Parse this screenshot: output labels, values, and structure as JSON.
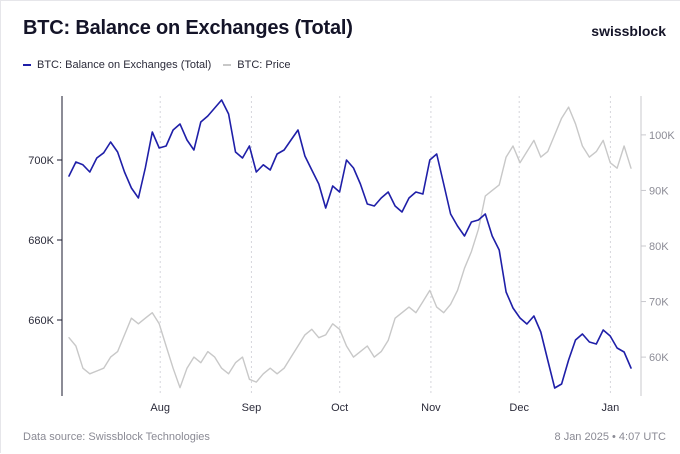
{
  "header": {
    "title": "BTC: Balance on Exchanges (Total)",
    "brand": "swissblock"
  },
  "legend": {
    "balance_label": "BTC: Balance on Exchanges (Total)",
    "price_label": "BTC: Price"
  },
  "footer": {
    "source": "Data source: Swissblock Technologies",
    "timestamp": "8 Jan 2025 • 4:07 UTC"
  },
  "colors": {
    "balance": "#1f1fa8",
    "price": "#c8c8c8",
    "grid": "#d5d5db"
  },
  "chart_data": {
    "type": "line",
    "title": "BTC: Balance on Exchanges (Total)",
    "x_range": [
      "2024-07-01",
      "2025-01-08"
    ],
    "x_ticks": [
      {
        "label": "Aug",
        "date": "2024-08-01"
      },
      {
        "label": "Sep",
        "date": "2024-09-01"
      },
      {
        "label": "Oct",
        "date": "2024-10-01"
      },
      {
        "label": "Nov",
        "date": "2024-11-01"
      },
      {
        "label": "Dec",
        "date": "2024-12-01"
      },
      {
        "label": "Jan",
        "date": "2025-01-01"
      }
    ],
    "left_axis": {
      "range": [
        641000,
        716000
      ],
      "ticks": [
        {
          "label": "660K",
          "value": 660000
        },
        {
          "label": "680K",
          "value": 680000
        },
        {
          "label": "700K",
          "value": 700000
        }
      ]
    },
    "right_axis": {
      "range": [
        53000,
        107000
      ],
      "ticks": [
        {
          "label": "60K",
          "value": 60000
        },
        {
          "label": "70K",
          "value": 70000
        },
        {
          "label": "80K",
          "value": 80000
        },
        {
          "label": "90K",
          "value": 90000
        },
        {
          "label": "100K",
          "value": 100000
        }
      ]
    },
    "series": [
      {
        "name": "BTC: Balance on Exchanges (Total)",
        "axis": "left",
        "values": [
          696000,
          699500,
          698800,
          697000,
          700500,
          701800,
          704500,
          702000,
          697000,
          693000,
          690500,
          698000,
          707000,
          703000,
          703500,
          707500,
          709000,
          705000,
          702500,
          709500,
          711000,
          713000,
          715000,
          711500,
          702000,
          700500,
          703500,
          697000,
          698800,
          697500,
          701500,
          702500,
          705000,
          707500,
          701000,
          697500,
          694000,
          688000,
          693500,
          692000,
          700000,
          698000,
          694000,
          689000,
          688500,
          690500,
          692000,
          688500,
          687000,
          690500,
          692000,
          691500,
          700000,
          701500,
          694000,
          686500,
          683500,
          681000,
          684500,
          685000,
          686500,
          681000,
          677500,
          667000,
          663000,
          660500,
          659000,
          661000,
          657000,
          650000,
          643000,
          644000,
          650000,
          655000,
          656500,
          654500,
          654000,
          657500,
          656000,
          653000,
          652000,
          648000
        ]
      },
      {
        "name": "BTC: Price",
        "axis": "right",
        "values": [
          63500,
          62000,
          58000,
          57000,
          57500,
          58000,
          60000,
          61000,
          64000,
          67000,
          66000,
          67000,
          68000,
          66000,
          62000,
          58000,
          54500,
          58000,
          60000,
          59000,
          61000,
          60000,
          58000,
          57000,
          59000,
          60000,
          56000,
          55500,
          57000,
          58000,
          57000,
          58000,
          60000,
          62000,
          64000,
          65000,
          63500,
          64000,
          66000,
          65000,
          62000,
          60000,
          61000,
          62000,
          60000,
          61000,
          63000,
          67000,
          68000,
          69000,
          68000,
          70000,
          72000,
          69000,
          68000,
          69500,
          72000,
          76000,
          79000,
          83000,
          89000,
          90000,
          91000,
          96000,
          98000,
          95000,
          97000,
          99000,
          96000,
          97000,
          100000,
          103000,
          105000,
          102000,
          98000,
          96000,
          97000,
          99000,
          95000,
          94000,
          98000,
          94000
        ]
      }
    ]
  }
}
